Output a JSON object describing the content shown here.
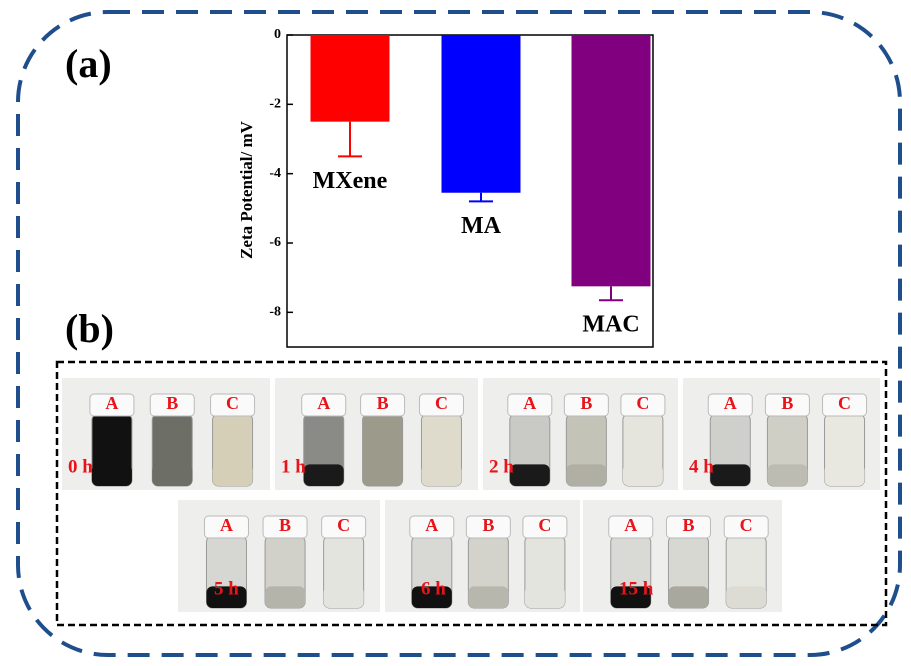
{
  "panels": {
    "a": "(a)",
    "b": "(b)"
  },
  "chart_data": {
    "type": "bar",
    "ylabel": "Zeta Potential/ mV",
    "categories": [
      "MXene",
      "MA",
      "MAC"
    ],
    "values": [
      -2.5,
      -4.55,
      -7.25
    ],
    "errors": [
      1.0,
      0.25,
      0.4
    ],
    "colors": [
      "#ff0000",
      "#0000ff",
      "#800080"
    ],
    "ylim": [
      -9,
      0
    ],
    "yticks": [
      0,
      -2,
      -4,
      -6,
      -8
    ]
  },
  "photos": [
    {
      "time": "0 h",
      "vials": [
        "A",
        "B",
        "C"
      ]
    },
    {
      "time": "1 h",
      "vials": [
        "A",
        "B",
        "C"
      ]
    },
    {
      "time": "2 h",
      "vials": [
        "A",
        "B",
        "C"
      ]
    },
    {
      "time": "4 h",
      "vials": [
        "A",
        "B",
        "C"
      ]
    },
    {
      "time": "5 h",
      "vials": [
        "A",
        "B",
        "C"
      ]
    },
    {
      "time": "6 h",
      "vials": [
        "A",
        "B",
        "C"
      ]
    },
    {
      "time": "15 h",
      "vials": [
        "A",
        "B",
        "C"
      ]
    }
  ]
}
